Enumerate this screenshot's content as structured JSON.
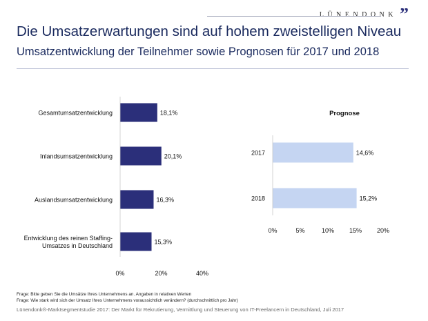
{
  "brand": {
    "name": "LÜNENDONK",
    "mark": "”",
    "rule_color": "#9aa0b4",
    "mark_color": "#2b2f7a"
  },
  "header": {
    "title": "Die Umsatzerwartungen sind auf hohem zweistelligen Niveau",
    "subtitle": "Umsatzentwicklung der Teilnehmer sowie Prognosen für 2017 und 2018"
  },
  "footer": {
    "note1": "Frage: Bitte geben Sie die Umsätze Ihres Unternehmens an. Angaben in relativen Werten",
    "note2": "Frage: Wie stark wird sich der Umsatz Ihres Unternehmens voraussichtlich verändern? (durchschnittlich pro Jahr)",
    "source": "Lünendonk®-Marktsegmentstudie 2017: Der Markt für Rekrutierung, Vermittlung und Steuerung von IT-Freelancern in Deutschland, Juli 2017"
  },
  "chart_data": [
    {
      "type": "bar",
      "orientation": "horizontal",
      "title": "",
      "categories": [
        [
          "Gesamtumsatzentwicklung"
        ],
        [
          "Inlandsumsatzentwicklung"
        ],
        [
          "Auslandsumsatzentwicklung"
        ],
        [
          "Entwicklung des reinen Staffing-",
          "Umsatzes in Deutschland"
        ]
      ],
      "values": [
        18.1,
        20.1,
        16.3,
        15.3
      ],
      "value_labels": [
        "18,1%",
        "20,1%",
        "16,3%",
        "15,3%"
      ],
      "xlim": [
        0,
        40
      ],
      "ticks": [
        0,
        20,
        40
      ],
      "tick_labels": [
        "0%",
        "20%",
        "40%"
      ],
      "color": "#2b2f7a",
      "grid": false
    },
    {
      "type": "bar",
      "orientation": "horizontal",
      "title": "Prognose",
      "categories": [
        [
          "2017"
        ],
        [
          "2018"
        ]
      ],
      "values": [
        14.6,
        15.2
      ],
      "value_labels": [
        "14,6%",
        "15,2%"
      ],
      "xlim": [
        0,
        20
      ],
      "ticks": [
        0,
        5,
        10,
        15,
        20
      ],
      "tick_labels": [
        "0%",
        "5%",
        "10%",
        "15%",
        "20%"
      ],
      "color": "#c5d5f2",
      "grid": false
    }
  ]
}
